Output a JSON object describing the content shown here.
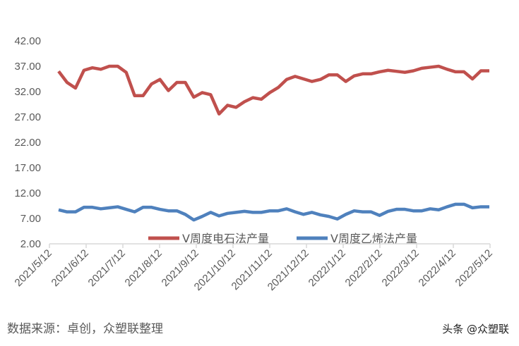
{
  "chart_data": {
    "type": "line",
    "title": "",
    "xlabel": "",
    "ylabel": "",
    "ylim": [
      2,
      42
    ],
    "yticks": [
      "2.00",
      "7.00",
      "12.00",
      "17.00",
      "22.00",
      "27.00",
      "32.00",
      "37.00",
      "42.00"
    ],
    "xtick_labels": [
      "2021/5/12",
      "2021/6/12",
      "2021/7/12",
      "2021/8/12",
      "2021/9/12",
      "2021/10/12",
      "2021/11/12",
      "2021/12/12",
      "2022/1/12",
      "2022/2/12",
      "2022/3/12",
      "2022/4/12",
      "2022/5/12"
    ],
    "x_range": [
      "2021/5/12",
      "2022/5/12"
    ],
    "x_frequency": "weekly",
    "grid": false,
    "legend_position": "bottom-inside",
    "series": [
      {
        "name": "V周度电石法产量",
        "color": "#c0504d",
        "values": [
          36.0,
          33.8,
          32.7,
          36.2,
          36.7,
          36.4,
          37.0,
          37.0,
          35.8,
          31.2,
          31.2,
          33.5,
          34.4,
          32.2,
          33.8,
          33.8,
          30.9,
          31.8,
          31.4,
          27.6,
          29.3,
          28.9,
          30.0,
          30.8,
          30.5,
          31.8,
          32.8,
          34.4,
          35.0,
          34.5,
          34.0,
          34.4,
          35.3,
          35.3,
          34.0,
          35.1,
          35.5,
          35.5,
          35.9,
          36.2,
          36.0,
          35.8,
          36.1,
          36.6,
          36.8,
          37.0,
          36.4,
          35.9,
          35.9,
          34.5,
          36.1,
          36.1
        ]
      },
      {
        "name": "V周度乙烯法产量",
        "color": "#4f81bd",
        "values": [
          8.7,
          8.3,
          8.3,
          9.2,
          9.2,
          8.9,
          9.1,
          9.3,
          8.8,
          8.3,
          9.2,
          9.2,
          8.8,
          8.5,
          8.5,
          7.8,
          6.7,
          7.4,
          8.2,
          7.5,
          8.0,
          8.2,
          8.4,
          8.2,
          8.2,
          8.5,
          8.5,
          8.9,
          8.3,
          7.8,
          8.2,
          7.7,
          7.4,
          6.9,
          7.8,
          8.5,
          8.3,
          8.3,
          7.6,
          8.4,
          8.8,
          8.8,
          8.5,
          8.5,
          8.9,
          8.7,
          9.3,
          9.8,
          9.8,
          9.1,
          9.3,
          9.3
        ]
      }
    ]
  },
  "footer": {
    "source": "数据来源：卓创，众塑联整理",
    "watermark": "头条 @众塑联"
  }
}
